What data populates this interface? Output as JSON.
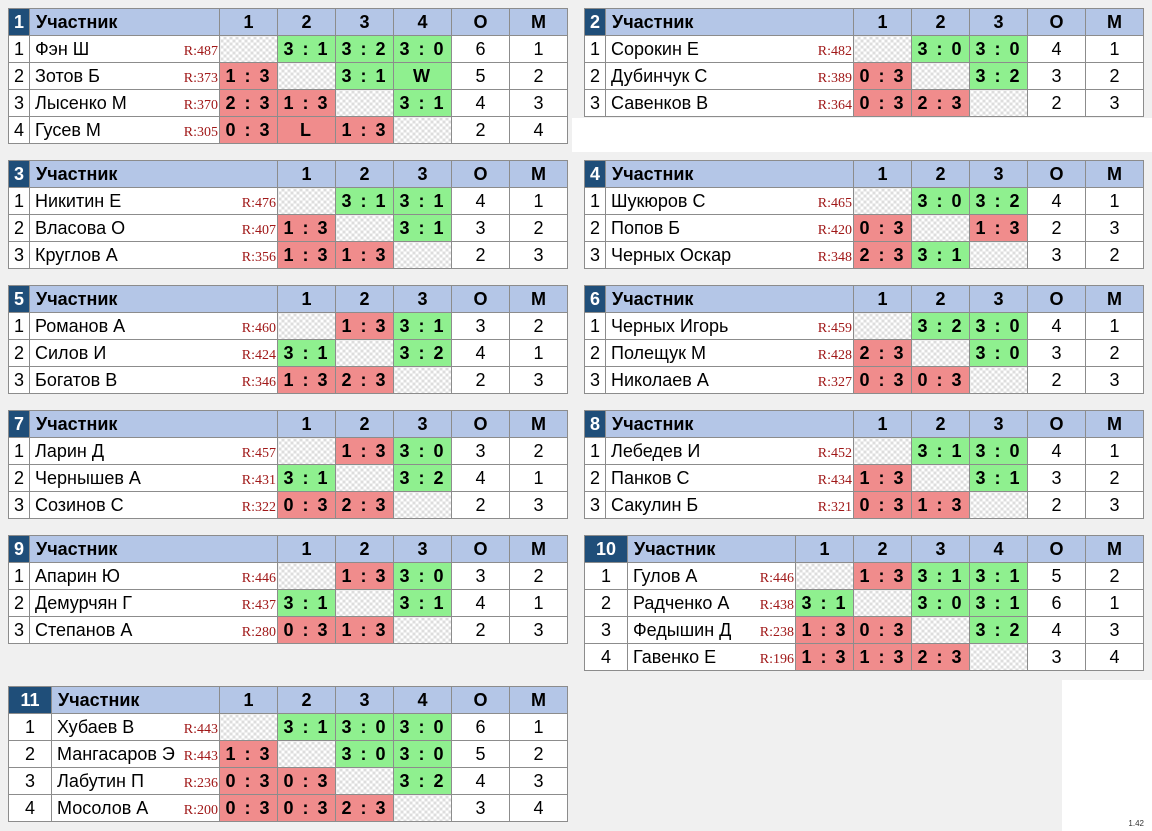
{
  "header": {
    "participant": "Участник",
    "points": "О",
    "place": "М"
  },
  "groups": [
    {
      "n": "1",
      "cols": [
        "1",
        "2",
        "3",
        "4"
      ],
      "rows": [
        {
          "no": "1",
          "name": "Фэн Ш",
          "rating": "R:487",
          "res": [
            "X",
            "3 : 1",
            "3 : 2",
            "3 : 0"
          ],
          "pts": "6",
          "place": "1"
        },
        {
          "no": "2",
          "name": "Зотов Б",
          "rating": "R:373",
          "res": [
            "1 : 3",
            "X",
            "3 : 1",
            "W"
          ],
          "pts": "5",
          "place": "2"
        },
        {
          "no": "3",
          "name": "Лысенко М",
          "rating": "R:370",
          "res": [
            "2 : 3",
            "1 : 3",
            "X",
            "3 : 1"
          ],
          "pts": "4",
          "place": "3"
        },
        {
          "no": "4",
          "name": "Гусев М",
          "rating": "R:305",
          "res": [
            "0 : 3",
            "L",
            "1 : 3",
            "X"
          ],
          "pts": "2",
          "place": "4"
        }
      ]
    },
    {
      "n": "2",
      "cols": [
        "1",
        "2",
        "3"
      ],
      "rows": [
        {
          "no": "1",
          "name": "Сорокин Е",
          "rating": "R:482",
          "res": [
            "X",
            "3 : 0",
            "3 : 0"
          ],
          "pts": "4",
          "place": "1"
        },
        {
          "no": "2",
          "name": "Дубинчук С",
          "rating": "R:389",
          "res": [
            "0 : 3",
            "X",
            "3 : 2"
          ],
          "pts": "3",
          "place": "2"
        },
        {
          "no": "3",
          "name": "Савенков В",
          "rating": "R:364",
          "res": [
            "0 : 3",
            "2 : 3",
            "X"
          ],
          "pts": "2",
          "place": "3"
        }
      ]
    },
    {
      "n": "3",
      "cols": [
        "1",
        "2",
        "3"
      ],
      "rows": [
        {
          "no": "1",
          "name": "Никитин Е",
          "rating": "R:476",
          "res": [
            "X",
            "3 : 1",
            "3 : 1"
          ],
          "pts": "4",
          "place": "1"
        },
        {
          "no": "2",
          "name": "Власова О",
          "rating": "R:407",
          "res": [
            "1 : 3",
            "X",
            "3 : 1"
          ],
          "pts": "3",
          "place": "2"
        },
        {
          "no": "3",
          "name": "Круглов А",
          "rating": "R:356",
          "res": [
            "1 : 3",
            "1 : 3",
            "X"
          ],
          "pts": "2",
          "place": "3"
        }
      ]
    },
    {
      "n": "4",
      "cols": [
        "1",
        "2",
        "3"
      ],
      "rows": [
        {
          "no": "1",
          "name": "Шукюров С",
          "rating": "R:465",
          "res": [
            "X",
            "3 : 0",
            "3 : 2"
          ],
          "pts": "4",
          "place": "1"
        },
        {
          "no": "2",
          "name": "Попов Б",
          "rating": "R:420",
          "res": [
            "0 : 3",
            "X",
            "1 : 3"
          ],
          "pts": "2",
          "place": "3"
        },
        {
          "no": "3",
          "name": "Черных Оскар",
          "rating": "R:348",
          "res": [
            "2 : 3",
            "3 : 1",
            "X"
          ],
          "pts": "3",
          "place": "2"
        }
      ]
    },
    {
      "n": "5",
      "cols": [
        "1",
        "2",
        "3"
      ],
      "rows": [
        {
          "no": "1",
          "name": "Романов А",
          "rating": "R:460",
          "res": [
            "X",
            "1 : 3",
            "3 : 1"
          ],
          "pts": "3",
          "place": "2"
        },
        {
          "no": "2",
          "name": "Силов И",
          "rating": "R:424",
          "res": [
            "3 : 1",
            "X",
            "3 : 2"
          ],
          "pts": "4",
          "place": "1"
        },
        {
          "no": "3",
          "name": "Богатов В",
          "rating": "R:346",
          "res": [
            "1 : 3",
            "2 : 3",
            "X"
          ],
          "pts": "2",
          "place": "3"
        }
      ]
    },
    {
      "n": "6",
      "cols": [
        "1",
        "2",
        "3"
      ],
      "rows": [
        {
          "no": "1",
          "name": "Черных Игорь",
          "rating": "R:459",
          "res": [
            "X",
            "3 : 2",
            "3 : 0"
          ],
          "pts": "4",
          "place": "1"
        },
        {
          "no": "2",
          "name": "Полещук М",
          "rating": "R:428",
          "res": [
            "2 : 3",
            "X",
            "3 : 0"
          ],
          "pts": "3",
          "place": "2"
        },
        {
          "no": "3",
          "name": "Николаев А",
          "rating": "R:327",
          "res": [
            "0 : 3",
            "0 : 3",
            "X"
          ],
          "pts": "2",
          "place": "3"
        }
      ]
    },
    {
      "n": "7",
      "cols": [
        "1",
        "2",
        "3"
      ],
      "rows": [
        {
          "no": "1",
          "name": "Ларин Д",
          "rating": "R:457",
          "res": [
            "X",
            "1 : 3",
            "3 : 0"
          ],
          "pts": "3",
          "place": "2"
        },
        {
          "no": "2",
          "name": "Чернышев А",
          "rating": "R:431",
          "res": [
            "3 : 1",
            "X",
            "3 : 2"
          ],
          "pts": "4",
          "place": "1"
        },
        {
          "no": "3",
          "name": "Созинов С",
          "rating": "R:322",
          "res": [
            "0 : 3",
            "2 : 3",
            "X"
          ],
          "pts": "2",
          "place": "3"
        }
      ]
    },
    {
      "n": "8",
      "cols": [
        "1",
        "2",
        "3"
      ],
      "rows": [
        {
          "no": "1",
          "name": "Лебедев И",
          "rating": "R:452",
          "res": [
            "X",
            "3 : 1",
            "3 : 0"
          ],
          "pts": "4",
          "place": "1"
        },
        {
          "no": "2",
          "name": "Панков С",
          "rating": "R:434",
          "res": [
            "1 : 3",
            "X",
            "3 : 1"
          ],
          "pts": "3",
          "place": "2"
        },
        {
          "no": "3",
          "name": "Сакулин Б",
          "rating": "R:321",
          "res": [
            "0 : 3",
            "1 : 3",
            "X"
          ],
          "pts": "2",
          "place": "3"
        }
      ]
    },
    {
      "n": "9",
      "cols": [
        "1",
        "2",
        "3"
      ],
      "rows": [
        {
          "no": "1",
          "name": "Апарин Ю",
          "rating": "R:446",
          "res": [
            "X",
            "1 : 3",
            "3 : 0"
          ],
          "pts": "3",
          "place": "2"
        },
        {
          "no": "2",
          "name": "Демурчян Г",
          "rating": "R:437",
          "res": [
            "3 : 1",
            "X",
            "3 : 1"
          ],
          "pts": "4",
          "place": "1"
        },
        {
          "no": "3",
          "name": "Степанов А",
          "rating": "R:280",
          "res": [
            "0 : 3",
            "1 : 3",
            "X"
          ],
          "pts": "2",
          "place": "3"
        }
      ]
    },
    {
      "n": "10",
      "cols": [
        "1",
        "2",
        "3",
        "4"
      ],
      "rows": [
        {
          "no": "1",
          "name": "Гулов А",
          "rating": "R:446",
          "res": [
            "X",
            "1 : 3",
            "3 : 1",
            "3 : 1"
          ],
          "pts": "5",
          "place": "2"
        },
        {
          "no": "2",
          "name": "Радченко А",
          "rating": "R:438",
          "res": [
            "3 : 1",
            "X",
            "3 : 0",
            "3 : 1"
          ],
          "pts": "6",
          "place": "1"
        },
        {
          "no": "3",
          "name": "Федышин Д",
          "rating": "R:238",
          "res": [
            "1 : 3",
            "0 : 3",
            "X",
            "3 : 2"
          ],
          "pts": "4",
          "place": "3"
        },
        {
          "no": "4",
          "name": "Гавенко Е",
          "rating": "R:196",
          "res": [
            "1 : 3",
            "1 : 3",
            "2 : 3",
            "X"
          ],
          "pts": "3",
          "place": "4"
        }
      ]
    },
    {
      "n": "11",
      "cols": [
        "1",
        "2",
        "3",
        "4"
      ],
      "rows": [
        {
          "no": "1",
          "name": "Хубаев В",
          "rating": "R:443",
          "res": [
            "X",
            "3 : 1",
            "3 : 0",
            "3 : 0"
          ],
          "pts": "6",
          "place": "1"
        },
        {
          "no": "2",
          "name": "Мангасаров Э",
          "rating": "R:443",
          "res": [
            "1 : 3",
            "X",
            "3 : 0",
            "3 : 0"
          ],
          "pts": "5",
          "place": "2"
        },
        {
          "no": "3",
          "name": "Лабутин П",
          "rating": "R:236",
          "res": [
            "0 : 3",
            "0 : 3",
            "X",
            "3 : 2"
          ],
          "pts": "4",
          "place": "3"
        },
        {
          "no": "4",
          "name": "Мосолов А",
          "rating": "R:200",
          "res": [
            "0 : 3",
            "0 : 3",
            "2 : 3",
            "X"
          ],
          "pts": "3",
          "place": "4"
        }
      ]
    }
  ],
  "version": "1.42"
}
